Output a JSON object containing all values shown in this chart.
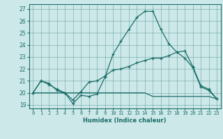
{
  "xlabel": "Humidex (Indice chaleur)",
  "bg_color": "#cde8e8",
  "line_color": "#1a6e6a",
  "xlim": [
    -0.5,
    23.5
  ],
  "ylim": [
    18.7,
    27.4
  ],
  "yticks": [
    19,
    20,
    21,
    22,
    23,
    24,
    25,
    26,
    27
  ],
  "xticks": [
    0,
    1,
    2,
    3,
    4,
    5,
    6,
    7,
    8,
    9,
    10,
    11,
    12,
    13,
    14,
    15,
    16,
    17,
    18,
    19,
    20,
    21,
    22,
    23
  ],
  "xlabels": [
    "0",
    "1",
    "2",
    "3",
    "4",
    "5",
    "6",
    "7",
    "8",
    "9",
    "10",
    "11",
    "12",
    "13",
    "14",
    "15",
    "16",
    "17",
    "18",
    "19",
    "20",
    "21",
    "22",
    "23"
  ],
  "series1": [
    20.0,
    21.0,
    20.8,
    20.2,
    20.0,
    19.1,
    19.8,
    19.7,
    19.9,
    21.3,
    23.2,
    24.3,
    25.3,
    26.3,
    26.8,
    26.8,
    25.3,
    24.1,
    23.4,
    22.9,
    22.1,
    20.5,
    20.2,
    19.5
  ],
  "series2": [
    20.0,
    21.0,
    20.7,
    20.3,
    20.0,
    19.4,
    20.1,
    20.9,
    21.0,
    21.4,
    21.9,
    22.0,
    22.2,
    22.5,
    22.7,
    22.9,
    22.9,
    23.1,
    23.4,
    23.5,
    22.2,
    20.6,
    20.3,
    19.5
  ],
  "series3": [
    20.0,
    20.0,
    20.0,
    20.0,
    20.0,
    20.0,
    20.0,
    20.0,
    20.0,
    20.0,
    20.0,
    20.0,
    20.0,
    20.0,
    20.0,
    19.7,
    19.7,
    19.7,
    19.7,
    19.7,
    19.7,
    19.7,
    19.7,
    19.5
  ]
}
